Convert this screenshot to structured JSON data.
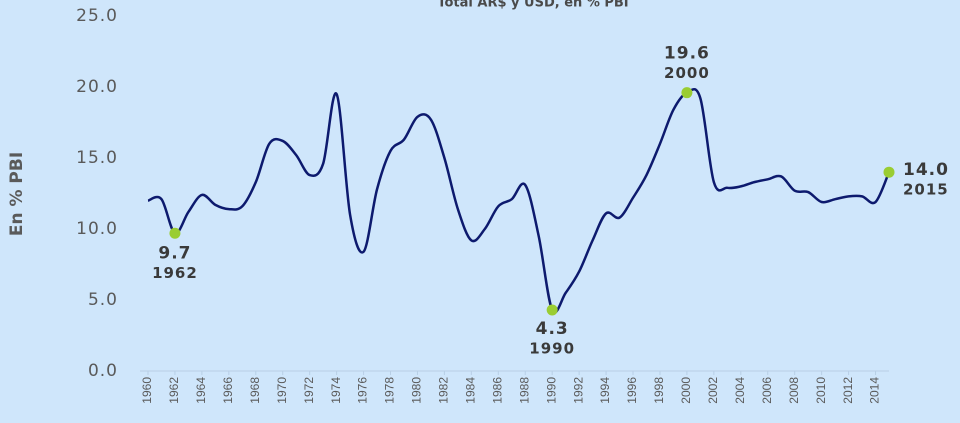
{
  "chart_data": {
    "type": "line",
    "title": "Total AR$ y USD, en % PBI",
    "y_label": "En % PBI",
    "color": "#0d1a6e",
    "highlight_color": "#9acd32",
    "x": [
      1960,
      1961,
      1962,
      1963,
      1964,
      1965,
      1966,
      1967,
      1968,
      1969,
      1970,
      1971,
      1972,
      1973,
      1974,
      1975,
      1976,
      1977,
      1978,
      1979,
      1980,
      1981,
      1982,
      1983,
      1984,
      1985,
      1986,
      1987,
      1988,
      1989,
      1990,
      1991,
      1992,
      1993,
      1994,
      1995,
      1996,
      1997,
      1998,
      1999,
      2000,
      2001,
      2002,
      2003,
      2004,
      2005,
      2006,
      2007,
      2008,
      2009,
      2010,
      2011,
      2012,
      2013,
      2014,
      2015
    ],
    "values": [
      12.0,
      12.1,
      9.7,
      11.2,
      12.4,
      11.7,
      11.4,
      11.6,
      13.3,
      16.0,
      16.2,
      15.2,
      13.8,
      14.6,
      19.5,
      11.0,
      8.4,
      12.8,
      15.5,
      16.3,
      17.9,
      17.7,
      15.0,
      11.4,
      9.2,
      10.0,
      11.6,
      12.1,
      13.1,
      9.5,
      4.3,
      5.5,
      7.0,
      9.2,
      11.1,
      10.8,
      12.2,
      13.8,
      16.0,
      18.4,
      19.6,
      19.2,
      13.3,
      12.9,
      13.0,
      13.3,
      13.5,
      13.7,
      12.7,
      12.6,
      11.9,
      12.1,
      12.3,
      12.3,
      11.9,
      14.0
    ],
    "xlim": [
      1960,
      2015
    ],
    "xticks": [
      1960,
      1962,
      1964,
      1966,
      1968,
      1970,
      1972,
      1974,
      1976,
      1978,
      1980,
      1982,
      1984,
      1986,
      1988,
      1990,
      1992,
      1994,
      1996,
      1998,
      2000,
      2002,
      2004,
      2006,
      2008,
      2010,
      2012,
      2014
    ],
    "ylim": [
      0,
      25
    ],
    "yticks": [
      {
        "value": 0,
        "label": "0.0"
      },
      {
        "value": 5,
        "label": "5.0"
      },
      {
        "value": 10,
        "label": "10.0"
      },
      {
        "value": 15,
        "label": "15.0"
      },
      {
        "value": 20,
        "label": "20.0"
      },
      {
        "value": 25,
        "label": "25.0"
      }
    ],
    "highlights": [
      {
        "x": 1962,
        "y": 9.7
      },
      {
        "x": 1990,
        "y": 4.3
      },
      {
        "x": 2000,
        "y": 19.6
      },
      {
        "x": 2015,
        "y": 14.0,
        "label": "14.0"
      }
    ]
  }
}
